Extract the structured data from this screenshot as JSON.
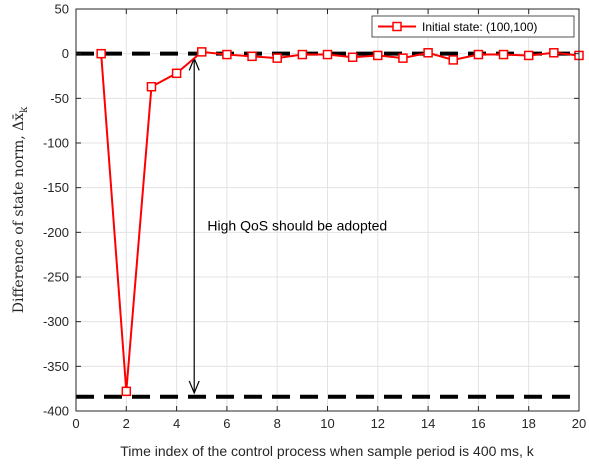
{
  "chart_data": {
    "type": "line",
    "xlabel": "Time index of the control process when sample period is 400 ms, k",
    "ylabel": "Difference of state norm, Δx̄",
    "ylabel_subscript": "k",
    "xlim": [
      0,
      20
    ],
    "ylim": [
      -400,
      50
    ],
    "xticks": [
      0,
      2,
      4,
      6,
      8,
      10,
      12,
      14,
      16,
      18,
      20
    ],
    "yticks": [
      50,
      0,
      -50,
      -100,
      -150,
      -200,
      -250,
      -300,
      -350,
      -400
    ],
    "xtick_labels": [
      "0",
      "2",
      "4",
      "6",
      "8",
      "10",
      "12",
      "14",
      "16",
      "18",
      "20"
    ],
    "ytick_labels": [
      "50",
      "0",
      "-50",
      "-100",
      "-150",
      "-200",
      "-250",
      "-300",
      "-350",
      "-400"
    ],
    "grid": true,
    "legend_position": "top-right",
    "series": [
      {
        "name": "Initial state: (100,100)",
        "color": "#ff0000",
        "marker": "square",
        "x": [
          1,
          2,
          3,
          4,
          5,
          6,
          7,
          8,
          9,
          10,
          11,
          12,
          13,
          14,
          15,
          16,
          17,
          18,
          19,
          20
        ],
        "y": [
          0,
          -378,
          -37,
          -22,
          2,
          -1,
          -3,
          -5,
          -1,
          -1,
          -4,
          -2,
          -5,
          1,
          -7,
          -1,
          -1,
          -2,
          1,
          -2
        ]
      }
    ],
    "reference_lines": [
      {
        "y": 0,
        "color": "#000000",
        "style": "dashed"
      },
      {
        "y": -384,
        "color": "#000000",
        "style": "dashed"
      }
    ],
    "annotations": [
      {
        "text": "High QoS should be adopted",
        "x": 8.8,
        "y": -198
      }
    ],
    "arrow": {
      "x": 4.7,
      "y_from": -3,
      "y_to": -382
    }
  }
}
